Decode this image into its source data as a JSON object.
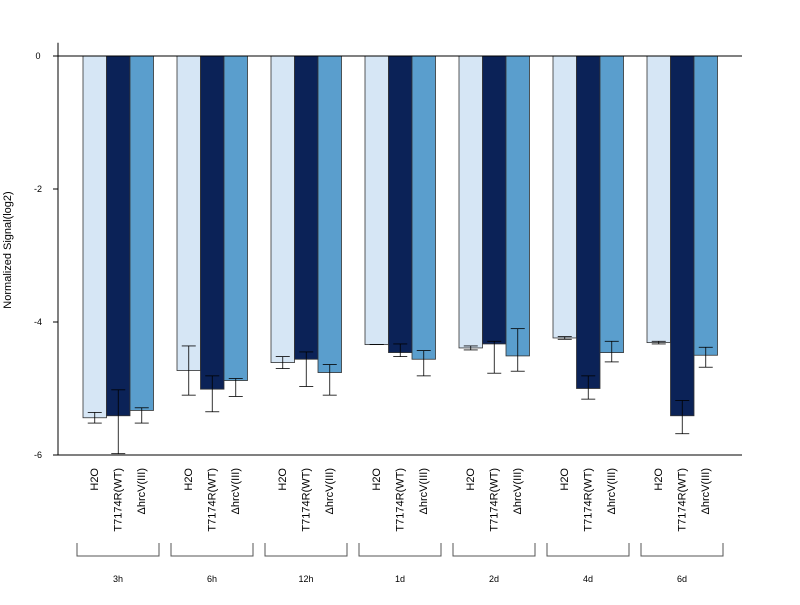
{
  "chart_data": {
    "type": "bar",
    "title": "",
    "xlabel": "",
    "ylabel": "Normalized Signal(log2)",
    "ylim": [
      -6,
      0.2
    ],
    "yticks": [
      0,
      -2,
      -4,
      -6
    ],
    "grid": false,
    "legend": "none",
    "colors": {
      "H2O": "#d6e6f5",
      "T7174R(WT)": "#0b2257",
      "ΔhrcV(III)": "#5a9ecd"
    },
    "groups": [
      "3h",
      "6h",
      "12h",
      "1d",
      "2d",
      "4d",
      "6d"
    ],
    "bar_labels": [
      "H2O",
      "T7174R(WT)",
      "ΔhrcV(III)"
    ],
    "series": [
      {
        "key": "H2O",
        "values": [
          -5.44,
          -4.73,
          -4.61,
          -4.34,
          -4.39,
          -4.24,
          -4.31
        ],
        "err_low": [
          -5.52,
          -5.1,
          -4.7,
          -4.34,
          -4.42,
          -4.26,
          -4.33
        ],
        "err_high": [
          -5.36,
          -4.36,
          -4.52,
          -4.34,
          -4.36,
          -4.22,
          -4.29
        ]
      },
      {
        "key": "T7174R(WT)",
        "values": [
          -5.41,
          -5.01,
          -4.56,
          -4.46,
          -4.33,
          -5.0,
          -5.41
        ],
        "err_low": [
          -5.98,
          -5.35,
          -4.97,
          -4.52,
          -4.77,
          -5.16,
          -5.68
        ],
        "err_high": [
          -5.02,
          -4.81,
          -4.45,
          -4.33,
          -4.29,
          -4.81,
          -5.18
        ]
      },
      {
        "key": "ΔhrcV(III)",
        "values": [
          -5.33,
          -4.88,
          -4.76,
          -4.56,
          -4.51,
          -4.46,
          -4.5
        ],
        "err_low": [
          -5.52,
          -5.12,
          -5.1,
          -4.81,
          -4.74,
          -4.6,
          -4.68
        ],
        "err_high": [
          -5.29,
          -4.85,
          -4.64,
          -4.43,
          -4.1,
          -4.29,
          -4.38
        ]
      }
    ]
  }
}
